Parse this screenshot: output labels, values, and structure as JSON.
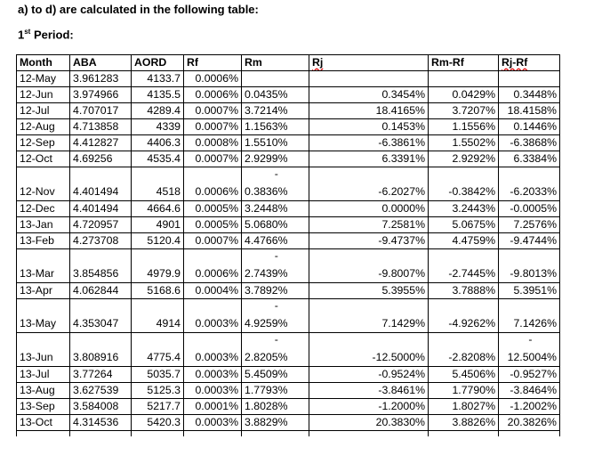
{
  "heading": {
    "title": "a) to d) are calculated in the following table:",
    "period_num": "1",
    "period_sup": "st",
    "period_rest": " Period:"
  },
  "table": {
    "headers": [
      "Month",
      "ABA",
      "AORD",
      "Rf",
      "Rm",
      "Rj",
      "Rm-Rf",
      "Rj-Rf"
    ],
    "rows": [
      {
        "month": "12-May",
        "aba": "3.961283",
        "aord": "4133.7",
        "rf": "0.0006%",
        "rm": "",
        "rj": "",
        "rmrf": "",
        "rjrf": "",
        "tall": false,
        "neg_rm": false,
        "neg_rjrf": false
      },
      {
        "month": "12-Jun",
        "aba": "3.974966",
        "aord": "4135.5",
        "rf": "0.0006%",
        "rm": "0.0435%",
        "rj": "0.3454%",
        "rmrf": "0.0429%",
        "rjrf": "0.3448%",
        "tall": false,
        "neg_rm": false,
        "neg_rjrf": false
      },
      {
        "month": "12-Jul",
        "aba": "4.707017",
        "aord": "4289.4",
        "rf": "0.0007%",
        "rm": "3.7214%",
        "rj": "18.4165%",
        "rmrf": "3.7207%",
        "rjrf": "18.4158%",
        "tall": false,
        "neg_rm": false,
        "neg_rjrf": false
      },
      {
        "month": "12-Aug",
        "aba": "4.713858",
        "aord": "4339",
        "rf": "0.0007%",
        "rm": "1.1563%",
        "rj": "0.1453%",
        "rmrf": "1.1556%",
        "rjrf": "0.1446%",
        "tall": false,
        "neg_rm": false,
        "neg_rjrf": false
      },
      {
        "month": "12-Sep",
        "aba": "4.412827",
        "aord": "4406.3",
        "rf": "0.0008%",
        "rm": "1.5510%",
        "rj": "-6.3861%",
        "rmrf": "1.5502%",
        "rjrf": "-6.3868%",
        "tall": false,
        "neg_rm": false,
        "neg_rjrf": false
      },
      {
        "month": "12-Oct",
        "aba": "4.69256",
        "aord": "4535.4",
        "rf": "0.0007%",
        "rm": "2.9299%",
        "rj": "6.3391%",
        "rmrf": "2.9292%",
        "rjrf": "6.3384%",
        "tall": false,
        "neg_rm": false,
        "neg_rjrf": false
      },
      {
        "month": "12-Nov",
        "aba": "4.401494",
        "aord": "4518",
        "rf": "0.0006%",
        "rm": "0.3836%",
        "rj": "-6.2027%",
        "rmrf": "-0.3842%",
        "rjrf": "-6.2033%",
        "tall": true,
        "neg_rm": true,
        "neg_rjrf": false
      },
      {
        "month": "12-Dec",
        "aba": "4.401494",
        "aord": "4664.6",
        "rf": "0.0005%",
        "rm": "3.2448%",
        "rj": "0.0000%",
        "rmrf": "3.2443%",
        "rjrf": "-0.0005%",
        "tall": false,
        "neg_rm": false,
        "neg_rjrf": false
      },
      {
        "month": "13-Jan",
        "aba": "4.720957",
        "aord": "4901",
        "rf": "0.0005%",
        "rm": "5.0680%",
        "rj": "7.2581%",
        "rmrf": "5.0675%",
        "rjrf": "7.2576%",
        "tall": false,
        "neg_rm": false,
        "neg_rjrf": false
      },
      {
        "month": "13-Feb",
        "aba": "4.273708",
        "aord": "5120.4",
        "rf": "0.0007%",
        "rm": "4.4766%",
        "rj": "-9.4737%",
        "rmrf": "4.4759%",
        "rjrf": "-9.4744%",
        "tall": false,
        "neg_rm": false,
        "neg_rjrf": false
      },
      {
        "month": "13-Mar",
        "aba": "3.854856",
        "aord": "4979.9",
        "rf": "0.0006%",
        "rm": "2.7439%",
        "rj": "-9.8007%",
        "rmrf": "-2.7445%",
        "rjrf": "-9.8013%",
        "tall": true,
        "neg_rm": true,
        "neg_rjrf": false
      },
      {
        "month": "13-Apr",
        "aba": "4.062844",
        "aord": "5168.6",
        "rf": "0.0004%",
        "rm": "3.7892%",
        "rj": "5.3955%",
        "rmrf": "3.7888%",
        "rjrf": "5.3951%",
        "tall": false,
        "neg_rm": false,
        "neg_rjrf": false
      },
      {
        "month": "13-May",
        "aba": "4.353047",
        "aord": "4914",
        "rf": "0.0003%",
        "rm": "4.9259%",
        "rj": "7.1429%",
        "rmrf": "-4.9262%",
        "rjrf": "7.1426%",
        "tall": true,
        "neg_rm": true,
        "neg_rjrf": false
      },
      {
        "month": "13-Jun",
        "aba": "3.808916",
        "aord": "4775.4",
        "rf": "0.0003%",
        "rm": "2.8205%",
        "rj": "-12.5000%",
        "rmrf": "-2.8208%",
        "rjrf": "12.5004%",
        "tall": true,
        "neg_rm": true,
        "neg_rjrf": true
      },
      {
        "month": "13-Jul",
        "aba": "3.77264",
        "aord": "5035.7",
        "rf": "0.0003%",
        "rm": "5.4509%",
        "rj": "-0.9524%",
        "rmrf": "5.4506%",
        "rjrf": "-0.9527%",
        "tall": false,
        "neg_rm": false,
        "neg_rjrf": false
      },
      {
        "month": "13-Aug",
        "aba": "3.627539",
        "aord": "5125.3",
        "rf": "0.0003%",
        "rm": "1.7793%",
        "rj": "-3.8461%",
        "rmrf": "1.7790%",
        "rjrf": "-3.8464%",
        "tall": false,
        "neg_rm": false,
        "neg_rjrf": false
      },
      {
        "month": "13-Sep",
        "aba": "3.584008",
        "aord": "5217.7",
        "rf": "0.0001%",
        "rm": "1.8028%",
        "rj": "-1.2000%",
        "rmrf": "1.8027%",
        "rjrf": "-1.2002%",
        "tall": false,
        "neg_rm": false,
        "neg_rjrf": false
      },
      {
        "month": "13-Oct",
        "aba": "4.314536",
        "aord": "5420.3",
        "rf": "0.0003%",
        "rm": "3.8829%",
        "rj": "20.3830%",
        "rmrf": "3.8826%",
        "rjrf": "20.3826%",
        "tall": false,
        "neg_rm": false,
        "neg_rjrf": false
      }
    ],
    "minus_sign": "-"
  }
}
